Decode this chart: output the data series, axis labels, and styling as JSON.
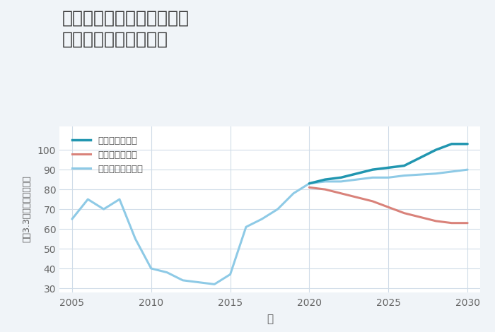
{
  "title_line1": "大阪府東大阪市南四条町の",
  "title_line2": "中古戸建ての価格推移",
  "xlabel": "年",
  "ylabel": "坪（3.3㎡）単価（万円）",
  "background_color": "#f0f4f8",
  "plot_bg_color": "#ffffff",
  "ylim": [
    28,
    112
  ],
  "xlim": [
    2004.2,
    2030.8
  ],
  "yticks": [
    30,
    40,
    50,
    60,
    70,
    80,
    90,
    100
  ],
  "xticks": [
    2005,
    2010,
    2015,
    2020,
    2025,
    2030
  ],
  "normal_color": "#8ecae6",
  "good_color": "#2196b0",
  "bad_color": "#d9827a",
  "normal_x": [
    2005,
    2006,
    2007,
    2008,
    2009,
    2010,
    2011,
    2012,
    2013,
    2014,
    2015,
    2016,
    2017,
    2018,
    2019,
    2020,
    2021,
    2022,
    2023,
    2024,
    2025,
    2026,
    2027,
    2028,
    2029,
    2030
  ],
  "normal_y": [
    65,
    75,
    70,
    75,
    55,
    40,
    38,
    34,
    33,
    32,
    37,
    61,
    65,
    70,
    78,
    83,
    84,
    84,
    85,
    86,
    86,
    87,
    87.5,
    88,
    89,
    90
  ],
  "good_x": [
    2020,
    2021,
    2022,
    2023,
    2024,
    2025,
    2026,
    2027,
    2028,
    2029,
    2030
  ],
  "good_y": [
    83,
    85,
    86,
    88,
    90,
    91,
    92,
    96,
    100,
    103,
    103
  ],
  "bad_x": [
    2020,
    2021,
    2022,
    2023,
    2024,
    2025,
    2026,
    2027,
    2028,
    2029,
    2030
  ],
  "bad_y": [
    81,
    80,
    78,
    76,
    74,
    71,
    68,
    66,
    64,
    63,
    63
  ],
  "legend_good": "グッドシナリオ",
  "legend_bad": "バッドシナリオ",
  "legend_normal": "ノーマルシナリオ",
  "grid_color": "#d0dce8",
  "tick_color": "#666666",
  "label_color": "#555555",
  "title_color": "#333333"
}
